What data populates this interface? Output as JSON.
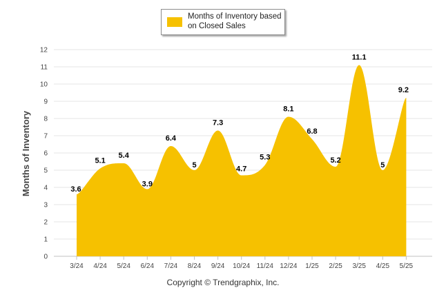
{
  "chart_data": {
    "type": "area",
    "categories": [
      "3/24",
      "4/24",
      "5/24",
      "6/24",
      "7/24",
      "8/24",
      "9/24",
      "10/24",
      "11/24",
      "12/24",
      "1/25",
      "2/25",
      "3/25",
      "4/25",
      "5/25"
    ],
    "series": [
      {
        "name": "Months of Inventory based on Closed Sales",
        "values": [
          3.6,
          5.1,
          5.4,
          3.9,
          6.4,
          5,
          7.3,
          4.7,
          5.3,
          8.1,
          6.8,
          5.2,
          11.1,
          5,
          9.2
        ]
      }
    ],
    "value_labels": [
      "3.6",
      "5.1",
      "5.4",
      "3.9",
      "6.4",
      "5",
      "7.3",
      "4.7",
      "5.3",
      "8.1",
      "6.8",
      "5.2",
      "11.1",
      "5",
      "9.2"
    ],
    "ylabel": "Months of Inventory",
    "xlabel": "",
    "ylim": [
      0,
      12
    ],
    "yticks": [
      "0",
      "1",
      "2",
      "3",
      "4",
      "5",
      "6",
      "7",
      "8",
      "9",
      "10",
      "11",
      "12"
    ],
    "grid": true,
    "legend_position": "top-center",
    "colors": {
      "fill": "#f6c100",
      "grid": "#e6e6e6",
      "axis": "#c0c0c0",
      "label": "#000000",
      "tick_text": "#444444"
    }
  },
  "legend": {
    "line1": "Months of Inventory based",
    "line2": "on Closed Sales"
  },
  "footer": {
    "copyright": "Copyright © Trendgraphix, Inc."
  }
}
